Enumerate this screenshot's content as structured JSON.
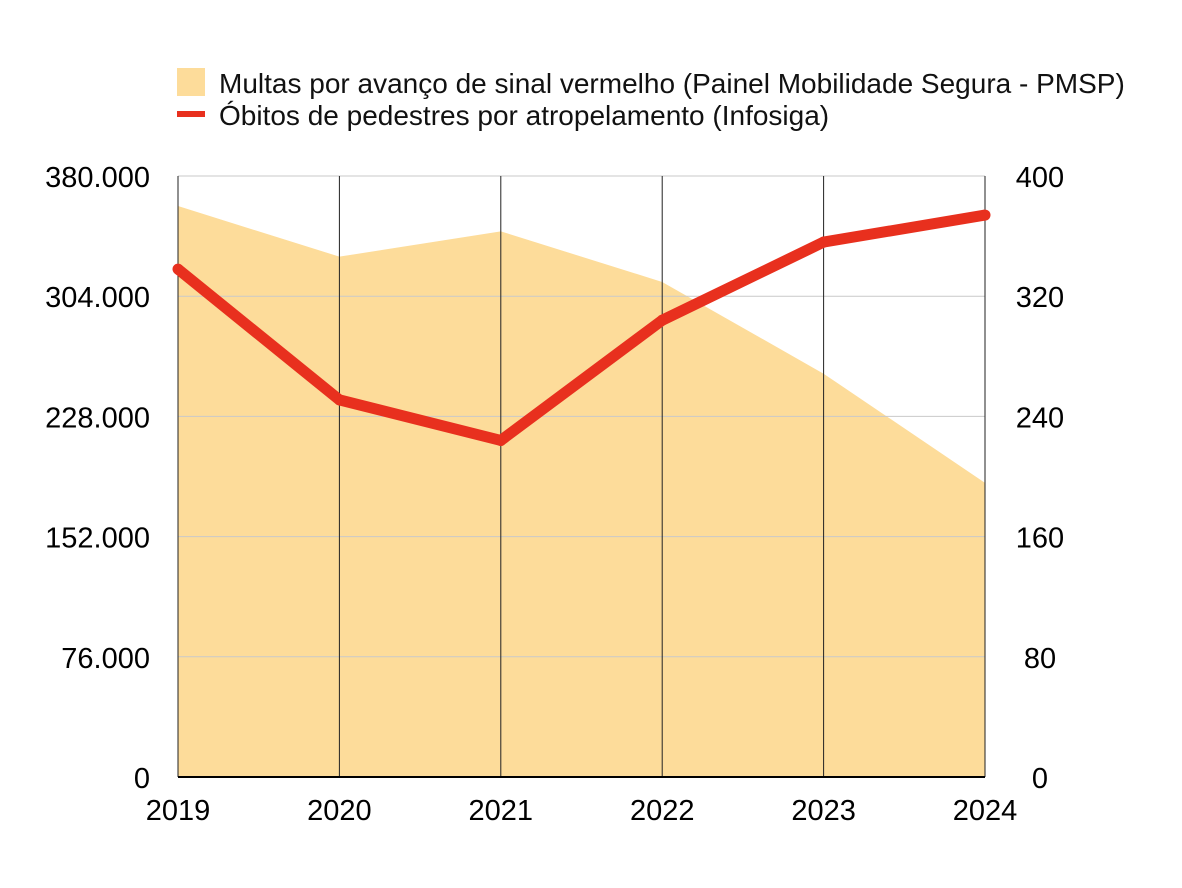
{
  "chart_data": {
    "type": "area+line",
    "categories": [
      "2019",
      "2020",
      "2021",
      "2022",
      "2023",
      "2024"
    ],
    "series": [
      {
        "name": "Multas por avanço de sinal vermelho (Painel Mobilidade Segura - PMSP)",
        "type": "area",
        "axis": "left",
        "color": "#FDDC9A",
        "values": [
          361000,
          329000,
          345000,
          313000,
          255000,
          186000
        ]
      },
      {
        "name": "Óbitos de pedestres por atropelamento (Infosiga)",
        "type": "line",
        "axis": "right",
        "color": "#E8301E",
        "values": [
          338,
          251,
          224,
          304,
          356,
          374
        ]
      }
    ],
    "left_axis": {
      "ylim": [
        0,
        380000
      ],
      "ticks": [
        0,
        76000,
        152000,
        228000,
        304000,
        380000
      ],
      "tick_labels": [
        "0",
        "76.000",
        "152.000",
        "228.000",
        "304.000",
        "380.000"
      ]
    },
    "right_axis": {
      "ylim": [
        0,
        400
      ],
      "ticks": [
        0,
        80,
        160,
        240,
        320,
        400
      ],
      "tick_labels": [
        "0",
        "80",
        "160",
        "240",
        "320",
        "400"
      ]
    },
    "title": "",
    "xlabel": "",
    "ylabel": "",
    "grid": true,
    "legend_position": "top"
  }
}
